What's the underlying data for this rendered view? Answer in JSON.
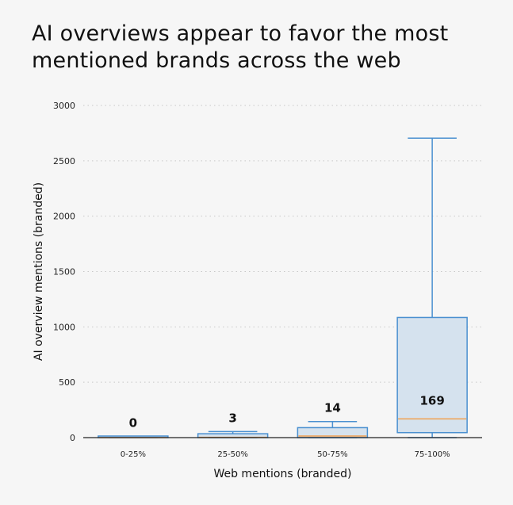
{
  "chart_data": {
    "type": "box",
    "title": "AI overviews appear to favor the most mentioned brands across the web",
    "xlabel": "Web mentions (branded)",
    "ylabel": "AI overview mentions (branded)",
    "ylim": [
      0,
      3000
    ],
    "yticks": [
      0,
      500,
      1000,
      1500,
      2000,
      2500,
      3000
    ],
    "grid": "horizontal dotted",
    "categories": [
      "0-25%",
      "25-50%",
      "50-75%",
      "75-100%"
    ],
    "boxes": [
      {
        "category": "0-25%",
        "whisker_low": 0,
        "q1": 0,
        "median": 0,
        "q3": 10,
        "whisker_high": 10,
        "median_label": "0"
      },
      {
        "category": "25-50%",
        "whisker_low": 0,
        "q1": 0,
        "median": 3,
        "q3": 35,
        "whisker_high": 55,
        "median_label": "3"
      },
      {
        "category": "50-75%",
        "whisker_low": 0,
        "q1": 0,
        "median": 14,
        "q3": 90,
        "whisker_high": 145,
        "median_label": "14"
      },
      {
        "category": "75-100%",
        "whisker_low": 0,
        "q1": 45,
        "median": 169,
        "q3": 1085,
        "whisker_high": 2705,
        "median_label": "169"
      }
    ],
    "colors": {
      "box_fill": "#d5e2ee",
      "box_stroke": "#4a90d0",
      "median": "#f0a050",
      "axis": "#222222",
      "grid": "#c8c8c8",
      "background": "#f6f6f6"
    }
  }
}
